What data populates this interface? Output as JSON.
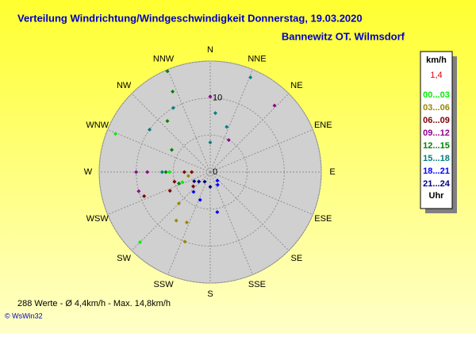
{
  "chart_data": {
    "type": "polar-scatter",
    "title": "Verteilung Windrichtung/Windgeschwindigkeit  Donnerstag, 19.03.2020",
    "subtitle": "Bannewitz OT. Wilmsdorf",
    "directions": [
      "N",
      "NNE",
      "NE",
      "ENE",
      "E",
      "ESE",
      "SE",
      "SSE",
      "S",
      "SSW",
      "SW",
      "WSW",
      "W",
      "WNW",
      "NW",
      "NNW"
    ],
    "rlim": [
      0,
      15
    ],
    "rticks": [
      0,
      10
    ],
    "grid_circles": [
      5,
      10,
      15
    ],
    "legend_title": "km/h",
    "legend_note": "1,4",
    "legend_footer": "Uhr",
    "series": [
      {
        "name": "00...03",
        "color": "#00ee00",
        "direction": [
          225,
          292,
          250,
          270
        ],
        "values": [
          13.4,
          13.8,
          4,
          5.5
        ]
      },
      {
        "name": "03...06",
        "color": "#998800",
        "direction": [
          200,
          215,
          225,
          205,
          260
        ],
        "values": [
          10,
          8,
          6,
          7.5,
          3
        ]
      },
      {
        "name": "06...09",
        "color": "#800000",
        "direction": [
          270,
          270,
          250,
          245,
          255,
          230
        ],
        "values": [
          3.5,
          2.5,
          9.5,
          6,
          5,
          3
        ]
      },
      {
        "name": "09...12",
        "color": "#900090",
        "direction": [
          44,
          0,
          270,
          270,
          255,
          30
        ],
        "values": [
          12.5,
          10.2,
          10,
          8.5,
          10,
          5
        ]
      },
      {
        "name": "12...15",
        "color": "#008000",
        "direction": [
          337,
          335,
          320,
          300,
          270,
          250
        ],
        "values": [
          14.8,
          12,
          9,
          6,
          6,
          4.5
        ]
      },
      {
        "name": "15...18",
        "color": "#008080",
        "direction": [
          23,
          20,
          330,
          305,
          270,
          5,
          0
        ],
        "values": [
          13.9,
          6.5,
          10,
          10,
          6.5,
          8,
          4
        ]
      },
      {
        "name": "18...21",
        "color": "#0000ff",
        "direction": [
          170,
          200,
          150,
          220,
          140
        ],
        "values": [
          5.5,
          4,
          2,
          3.5,
          1.5
        ]
      },
      {
        "name": "21...24",
        "color": "#000080",
        "direction": [
          230,
          240,
          180,
          210
        ],
        "values": [
          2,
          2.5,
          2,
          1.5
        ]
      }
    ],
    "footer": "288 Werte   -   Ø 4,4km/h   -   Max. 14,8km/h",
    "credit": "© WsWin32"
  }
}
